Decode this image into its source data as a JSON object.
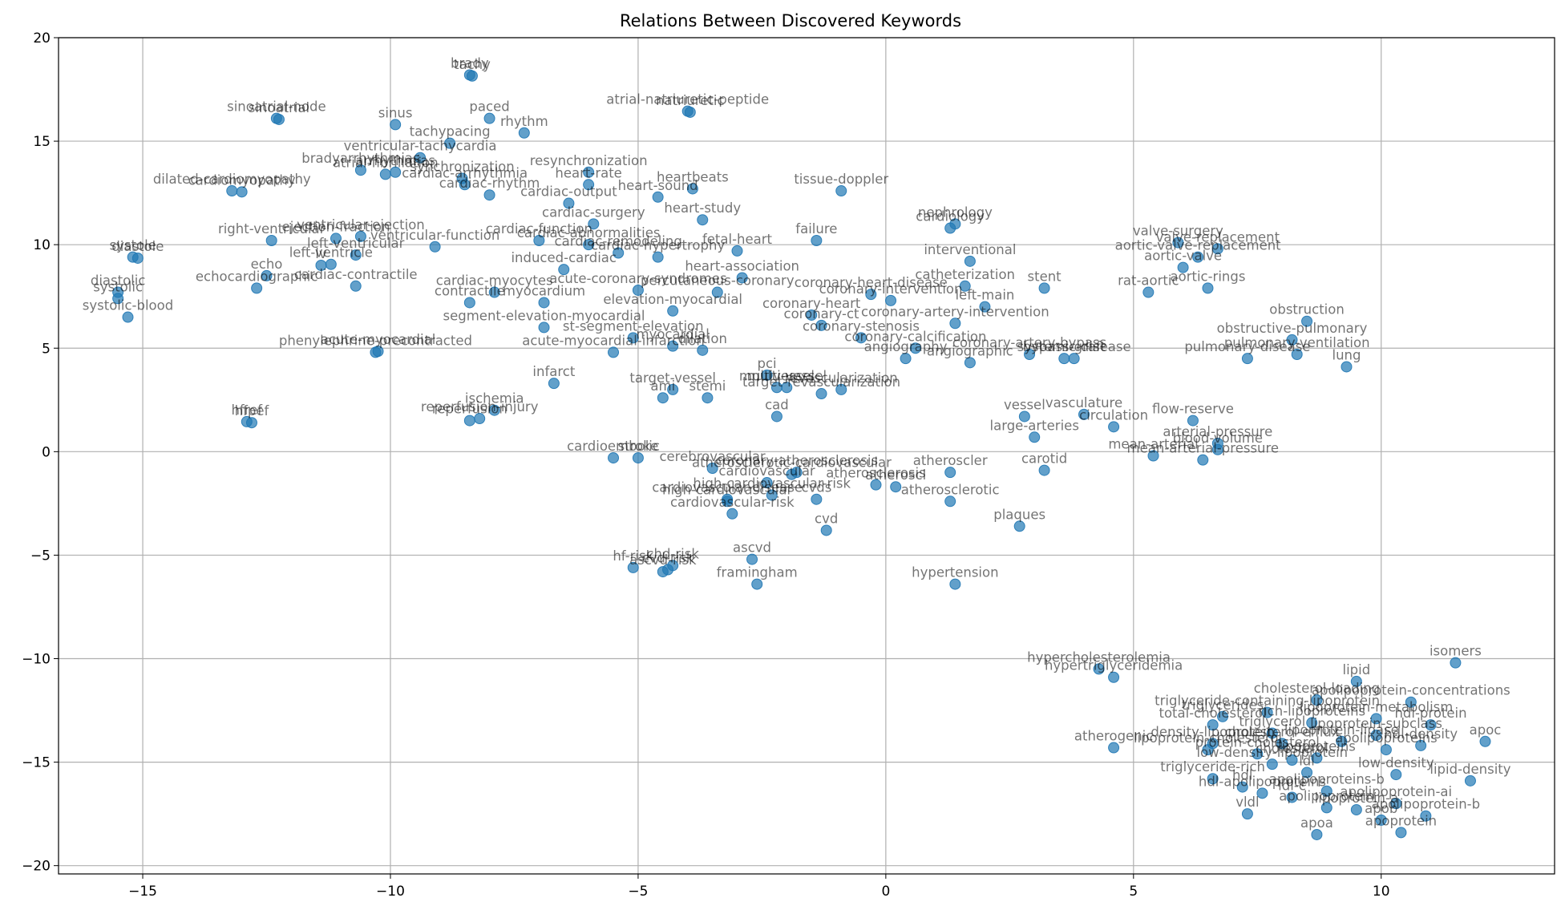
{
  "chart_data": {
    "type": "scatter",
    "title": "Relations Between Discovered Keywords",
    "xlabel": "",
    "ylabel": "",
    "xlim": [
      -16.7,
      13.5
    ],
    "ylim": [
      -20.4,
      20.0
    ],
    "xticks": [
      -15,
      -10,
      -5,
      0,
      5,
      10
    ],
    "yticks": [
      -20,
      -15,
      -10,
      -5,
      0,
      5,
      10,
      15,
      20
    ],
    "xtick_labels": [
      "−15",
      "−10",
      "−5",
      "0",
      "5",
      "10"
    ],
    "ytick_labels": [
      "−20",
      "−15",
      "−10",
      "−5",
      "0",
      "5",
      "10",
      "15",
      "20"
    ],
    "grid": true,
    "color": "#1f77b4",
    "points": [
      {
        "label": "brady",
        "x": -8.4,
        "y": 18.2
      },
      {
        "label": "tachy",
        "x": -8.35,
        "y": 18.15
      },
      {
        "label": "sinoatrial-node",
        "x": -12.3,
        "y": 16.1
      },
      {
        "label": "sinoatrial",
        "x": -12.25,
        "y": 16.05
      },
      {
        "label": "paced",
        "x": -8.0,
        "y": 16.1
      },
      {
        "label": "atrial-natriuretic-peptide",
        "x": -4.0,
        "y": 16.45
      },
      {
        "label": "natriuretic",
        "x": -3.95,
        "y": 16.4
      },
      {
        "label": "sinus",
        "x": -9.9,
        "y": 15.8
      },
      {
        "label": "rhythm",
        "x": -7.3,
        "y": 15.4
      },
      {
        "label": "tachypacing",
        "x": -8.8,
        "y": 14.9
      },
      {
        "label": "ventricular-tachycardia",
        "x": -9.4,
        "y": 14.2
      },
      {
        "label": "bradyarrhythmias",
        "x": -10.6,
        "y": 13.6
      },
      {
        "label": "atrial-fibrillation",
        "x": -10.1,
        "y": 13.4
      },
      {
        "label": "arrhythmias",
        "x": -9.9,
        "y": 13.5
      },
      {
        "label": "resynchronization",
        "x": -6.0,
        "y": 13.5
      },
      {
        "label": "synchronization",
        "x": -8.55,
        "y": 13.2
      },
      {
        "label": "cardiac-arrhythmia",
        "x": -8.5,
        "y": 12.9
      },
      {
        "label": "cardiac-rhythm",
        "x": -8.0,
        "y": 12.4
      },
      {
        "label": "heart-rate",
        "x": -6.0,
        "y": 12.9
      },
      {
        "label": "heartbeats",
        "x": -3.9,
        "y": 12.7
      },
      {
        "label": "heart-sound",
        "x": -4.6,
        "y": 12.3
      },
      {
        "label": "tissue-doppler",
        "x": -0.9,
        "y": 12.6
      },
      {
        "label": "dilated-cardiomyopathy",
        "x": -13.2,
        "y": 12.6
      },
      {
        "label": "cardiomyopathy",
        "x": -13.0,
        "y": 12.55
      },
      {
        "label": "cardiac-output",
        "x": -6.4,
        "y": 12.0
      },
      {
        "label": "heart-study",
        "x": -3.7,
        "y": 11.2
      },
      {
        "label": "cardiac-surgery",
        "x": -5.9,
        "y": 11.0
      },
      {
        "label": "ventricular-ejection",
        "x": -10.6,
        "y": 10.4
      },
      {
        "label": "ejection-fraction",
        "x": -11.1,
        "y": 10.3
      },
      {
        "label": "ventricular-function",
        "x": -9.1,
        "y": 9.9
      },
      {
        "label": "right-ventricular",
        "x": -12.4,
        "y": 10.2
      },
      {
        "label": "cardiac-function",
        "x": -7.0,
        "y": 10.2
      },
      {
        "label": "cardiac-abnormalities",
        "x": -6.0,
        "y": 10.0
      },
      {
        "label": "fetal-heart",
        "x": -3.0,
        "y": 9.7
      },
      {
        "label": "failure",
        "x": -1.4,
        "y": 10.2
      },
      {
        "label": "nephrology",
        "x": 1.4,
        "y": 11.0
      },
      {
        "label": "cardiology",
        "x": 1.3,
        "y": 10.8
      },
      {
        "label": "cardiac-remodeling",
        "x": -5.4,
        "y": 9.6
      },
      {
        "label": "left-ventricular",
        "x": -10.7,
        "y": 9.5
      },
      {
        "label": "systole",
        "x": -15.2,
        "y": 9.4
      },
      {
        "label": "diastole",
        "x": -15.1,
        "y": 9.35
      },
      {
        "label": "lv",
        "x": -11.4,
        "y": 9.0
      },
      {
        "label": "left-ventricle",
        "x": -11.2,
        "y": 9.05
      },
      {
        "label": "cardiac-hypertrophy",
        "x": -4.6,
        "y": 9.4
      },
      {
        "label": "interventional",
        "x": 1.7,
        "y": 9.2
      },
      {
        "label": "echocardiographic",
        "x": -12.7,
        "y": 7.9
      },
      {
        "label": "echo",
        "x": -12.5,
        "y": 8.5
      },
      {
        "label": "cardiac-contractile",
        "x": -10.7,
        "y": 8.0
      },
      {
        "label": "induced-cardiac",
        "x": -6.5,
        "y": 8.8
      },
      {
        "label": "heart-association",
        "x": -2.9,
        "y": 8.4
      },
      {
        "label": "catheterization",
        "x": 1.6,
        "y": 8.0
      },
      {
        "label": "stent",
        "x": 3.2,
        "y": 7.9
      },
      {
        "label": "valve-surgery",
        "x": 5.9,
        "y": 10.1
      },
      {
        "label": "valve-replacement",
        "x": 6.7,
        "y": 9.8
      },
      {
        "label": "aortic-valve-replacement",
        "x": 6.3,
        "y": 9.4
      },
      {
        "label": "aortic-valve",
        "x": 6.0,
        "y": 8.9
      },
      {
        "label": "aortic-rings",
        "x": 6.5,
        "y": 7.9
      },
      {
        "label": "rat-aortic",
        "x": 5.3,
        "y": 7.7
      },
      {
        "label": "contractile",
        "x": -8.4,
        "y": 7.2
      },
      {
        "label": "cardiac-myocytes",
        "x": -7.9,
        "y": 7.7
      },
      {
        "label": "acute-coronary-syndromes",
        "x": -5.0,
        "y": 7.8
      },
      {
        "label": "percutaneous-coronary",
        "x": -3.4,
        "y": 7.7
      },
      {
        "label": "coronary-heart-disease",
        "x": -0.3,
        "y": 7.6
      },
      {
        "label": "coronary-intervention",
        "x": 0.1,
        "y": 7.3
      },
      {
        "label": "left-main",
        "x": 2.0,
        "y": 7.0
      },
      {
        "label": "coronary-artery-intervention",
        "x": 1.4,
        "y": 6.2
      },
      {
        "label": "coronary-heart",
        "x": -1.5,
        "y": 6.6
      },
      {
        "label": "coronary-ct",
        "x": -1.3,
        "y": 6.1
      },
      {
        "label": "myocardium",
        "x": -6.9,
        "y": 7.2
      },
      {
        "label": "elevation-myocardial",
        "x": -4.3,
        "y": 6.8
      },
      {
        "label": "obstruction",
        "x": 8.5,
        "y": 6.3
      },
      {
        "label": "obstructive-pulmonary",
        "x": 8.2,
        "y": 5.4
      },
      {
        "label": "pulmonary-ventilation",
        "x": 8.3,
        "y": 4.7
      },
      {
        "label": "pulmonary-disease",
        "x": 7.3,
        "y": 4.5
      },
      {
        "label": "lung",
        "x": 9.3,
        "y": 4.1
      },
      {
        "label": "systemic-disease",
        "x": 3.8,
        "y": 4.5
      },
      {
        "label": "segment-elevation-myocardial",
        "x": -6.9,
        "y": 6.0
      },
      {
        "label": "st-segment-elevation",
        "x": -5.1,
        "y": 5.5
      },
      {
        "label": "acute-myocardial-infarction",
        "x": -5.5,
        "y": 4.8
      },
      {
        "label": "myocardial",
        "x": -4.3,
        "y": 5.1
      },
      {
        "label": "dilation",
        "x": -3.7,
        "y": 4.9
      },
      {
        "label": "coronary-stenosis",
        "x": -0.5,
        "y": 5.5
      },
      {
        "label": "coronary-calcification",
        "x": 0.6,
        "y": 5.0
      },
      {
        "label": "coronary-artery-bypass",
        "x": 2.9,
        "y": 4.7
      },
      {
        "label": "bypass-graft",
        "x": 3.6,
        "y": 4.5
      },
      {
        "label": "angiographic",
        "x": 1.7,
        "y": 4.3
      },
      {
        "label": "angiography",
        "x": 0.4,
        "y": 4.5
      },
      {
        "label": "phenylephrine-precontracted",
        "x": -10.3,
        "y": 4.8
      },
      {
        "label": "acute-myocardial",
        "x": -10.25,
        "y": 4.85
      },
      {
        "label": "infarct",
        "x": -6.7,
        "y": 3.3
      },
      {
        "label": "pci",
        "x": -2.4,
        "y": 3.7
      },
      {
        "label": "multivessel",
        "x": -2.2,
        "y": 3.1
      },
      {
        "label": "multi-vessel",
        "x": -2.0,
        "y": 3.1
      },
      {
        "label": "target-vessel",
        "x": -4.3,
        "y": 3.0
      },
      {
        "label": "revascularization",
        "x": -0.9,
        "y": 3.0
      },
      {
        "label": "target-revascularization",
        "x": -1.3,
        "y": 2.8
      },
      {
        "label": "ami",
        "x": -4.5,
        "y": 2.6
      },
      {
        "label": "stemi",
        "x": -3.6,
        "y": 2.6
      },
      {
        "label": "cad",
        "x": -2.2,
        "y": 1.7
      },
      {
        "label": "ischemia",
        "x": -7.9,
        "y": 2.0
      },
      {
        "label": "hfpef",
        "x": -12.8,
        "y": 1.4
      },
      {
        "label": "hfref",
        "x": -12.9,
        "y": 1.45
      },
      {
        "label": "reperfusion-injury",
        "x": -8.2,
        "y": 1.6
      },
      {
        "label": "reperfusion",
        "x": -8.4,
        "y": 1.5
      },
      {
        "label": "vasculature",
        "x": 4.0,
        "y": 1.8
      },
      {
        "label": "vessel",
        "x": 2.8,
        "y": 1.7
      },
      {
        "label": "circulation",
        "x": 4.6,
        "y": 1.2
      },
      {
        "label": "flow-reserve",
        "x": 6.2,
        "y": 1.5
      },
      {
        "label": "large-arteries",
        "x": 3.0,
        "y": 0.7
      },
      {
        "label": "arterial-pressure",
        "x": 6.7,
        "y": 0.4
      },
      {
        "label": "mean-arterial-pressure",
        "x": 6.4,
        "y": -0.4
      },
      {
        "label": "mean-arterial",
        "x": 5.4,
        "y": -0.2
      },
      {
        "label": "blood-volume",
        "x": 6.7,
        "y": 0.1
      },
      {
        "label": "carotid",
        "x": 3.2,
        "y": -0.9
      },
      {
        "label": "cardioembolic",
        "x": -5.5,
        "y": -0.3
      },
      {
        "label": "stroke",
        "x": -5.0,
        "y": -0.3
      },
      {
        "label": "cerebrovascular",
        "x": -3.5,
        "y": -0.8
      },
      {
        "label": "coronary-atherosclerosis",
        "x": -1.8,
        "y": -1.0
      },
      {
        "label": "cardiovascular-disease",
        "x": -3.2,
        "y": -2.3
      },
      {
        "label": "atherosclerotic-cardiovascular",
        "x": -1.9,
        "y": -1.1
      },
      {
        "label": "cardiovascular",
        "x": -2.4,
        "y": -1.5
      },
      {
        "label": "cardiovascular-risk",
        "x": -3.1,
        "y": -3.0
      },
      {
        "label": "atherosclerosis",
        "x": -0.2,
        "y": -1.6
      },
      {
        "label": "atherosclerotic",
        "x": 1.3,
        "y": -2.4
      },
      {
        "label": "atheroscler",
        "x": 1.3,
        "y": -1.0
      },
      {
        "label": "atheroscl",
        "x": 0.2,
        "y": -1.7
      },
      {
        "label": "high-cardiovascular",
        "x": -3.2,
        "y": -2.4
      },
      {
        "label": "high-cardiovascular-risk",
        "x": -2.3,
        "y": -2.1
      },
      {
        "label": "plaques",
        "x": 2.7,
        "y": -3.6
      },
      {
        "label": "cvds",
        "x": -1.4,
        "y": -2.3
      },
      {
        "label": "cvd",
        "x": -1.2,
        "y": -3.8
      },
      {
        "label": "hf-risk",
        "x": -5.1,
        "y": -5.6
      },
      {
        "label": "cvd-risk",
        "x": -4.4,
        "y": -5.7
      },
      {
        "label": "chd-risk",
        "x": -4.3,
        "y": -5.5
      },
      {
        "label": "ascvd-risk",
        "x": -4.5,
        "y": -5.8
      },
      {
        "label": "ascvd",
        "x": -2.7,
        "y": -5.2
      },
      {
        "label": "framingham",
        "x": -2.6,
        "y": -6.4
      },
      {
        "label": "hypertension",
        "x": 1.4,
        "y": -6.4
      },
      {
        "label": "hypercholesterolemia",
        "x": 4.3,
        "y": -10.5
      },
      {
        "label": "hypertriglyceridemia",
        "x": 4.6,
        "y": -10.9
      },
      {
        "label": "isomers",
        "x": 11.5,
        "y": -10.2
      },
      {
        "label": "lipid",
        "x": 9.5,
        "y": -11.1
      },
      {
        "label": "cholesterol-loading",
        "x": 8.7,
        "y": -12.0
      },
      {
        "label": "apolipoprotein-concentrations",
        "x": 10.6,
        "y": -12.1
      },
      {
        "label": "triglyceride-containing-lipoprotein",
        "x": 7.7,
        "y": -12.6
      },
      {
        "label": "triglycerides",
        "x": 6.8,
        "y": -12.8
      },
      {
        "label": "lipoprotein-metabolism",
        "x": 9.9,
        "y": -12.9
      },
      {
        "label": "total-cholesterol",
        "x": 6.6,
        "y": -13.2
      },
      {
        "label": "rich-lipoproteins",
        "x": 8.6,
        "y": -13.1
      },
      {
        "label": "hdl-protein",
        "x": 11.0,
        "y": -13.2
      },
      {
        "label": "triglycerol",
        "x": 7.8,
        "y": -13.6
      },
      {
        "label": "lipoprotein-subclass",
        "x": 9.9,
        "y": -13.7
      },
      {
        "label": "lipoprotein-lipase",
        "x": 9.2,
        "y": -14.0
      },
      {
        "label": "density-lipoprotein",
        "x": 6.6,
        "y": -14.1
      },
      {
        "label": "cholesterol-efflux",
        "x": 8.0,
        "y": -14.1
      },
      {
        "label": "atherogenic",
        "x": 4.6,
        "y": -14.3
      },
      {
        "label": "lipoprotein-cholesterol",
        "x": 6.5,
        "y": -14.4
      },
      {
        "label": "protein-cholesterol",
        "x": 7.5,
        "y": -14.6
      },
      {
        "label": "cholesterol",
        "x": 8.2,
        "y": -14.9
      },
      {
        "label": "apolipoproteins",
        "x": 10.1,
        "y": -14.4
      },
      {
        "label": "hdl-density",
        "x": 10.8,
        "y": -14.2
      },
      {
        "label": "apoc",
        "x": 12.1,
        "y": -14.0
      },
      {
        "label": "lipoproteins",
        "x": 8.7,
        "y": -14.8
      },
      {
        "label": "low-density-lipoprotein",
        "x": 7.8,
        "y": -15.1
      },
      {
        "label": "triglyceride-rich",
        "x": 6.6,
        "y": -15.8
      },
      {
        "label": "low-density",
        "x": 10.3,
        "y": -15.6
      },
      {
        "label": "ldl",
        "x": 8.5,
        "y": -15.5
      },
      {
        "label": "lipid-density",
        "x": 11.8,
        "y": -15.9
      },
      {
        "label": "hdl",
        "x": 7.2,
        "y": -16.2
      },
      {
        "label": "apolipoproteins-b",
        "x": 8.9,
        "y": -16.4
      },
      {
        "label": "hdl-apolipoproteins",
        "x": 7.6,
        "y": -16.5
      },
      {
        "label": "ldl-c",
        "x": 8.2,
        "y": -16.7
      },
      {
        "label": "vldl",
        "x": 7.3,
        "y": -17.5
      },
      {
        "label": "apolipoprotein",
        "x": 8.9,
        "y": -17.2
      },
      {
        "label": "apolipoprotein-ai",
        "x": 10.3,
        "y": -17.0
      },
      {
        "label": "lipoprotein-a",
        "x": 9.5,
        "y": -17.3
      },
      {
        "label": "apolipoprotein-b",
        "x": 10.9,
        "y": -17.6
      },
      {
        "label": "apoa",
        "x": 8.7,
        "y": -18.5
      },
      {
        "label": "apoprotein",
        "x": 10.4,
        "y": -18.4
      },
      {
        "label": "apob",
        "x": 10.0,
        "y": -17.8
      },
      {
        "label": "diastolic",
        "x": -15.5,
        "y": 7.7
      },
      {
        "label": "systolic",
        "x": -15.5,
        "y": 7.4
      },
      {
        "label": "systolic-blood",
        "x": -15.3,
        "y": 6.5
      }
    ]
  }
}
